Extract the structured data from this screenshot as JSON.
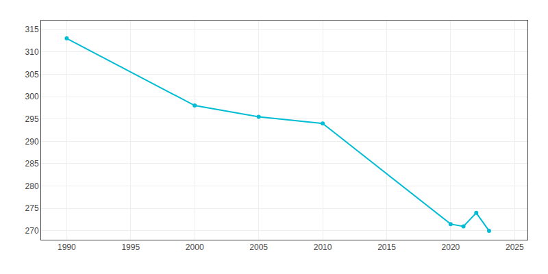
{
  "chart_data": {
    "type": "line",
    "x": [
      1990,
      2000,
      2005,
      2010,
      2020,
      2021,
      2022,
      2023
    ],
    "values": [
      313,
      298,
      295.5,
      294,
      271.5,
      271,
      274,
      270
    ],
    "color": "#00bcd4",
    "marker": "circle",
    "xlim": [
      1988,
      2026
    ],
    "ylim": [
      268,
      317
    ],
    "xticks": [
      1990,
      1995,
      2000,
      2005,
      2010,
      2015,
      2020,
      2025
    ],
    "yticks": [
      270,
      275,
      280,
      285,
      290,
      295,
      300,
      305,
      310,
      315
    ],
    "grid": true
  }
}
